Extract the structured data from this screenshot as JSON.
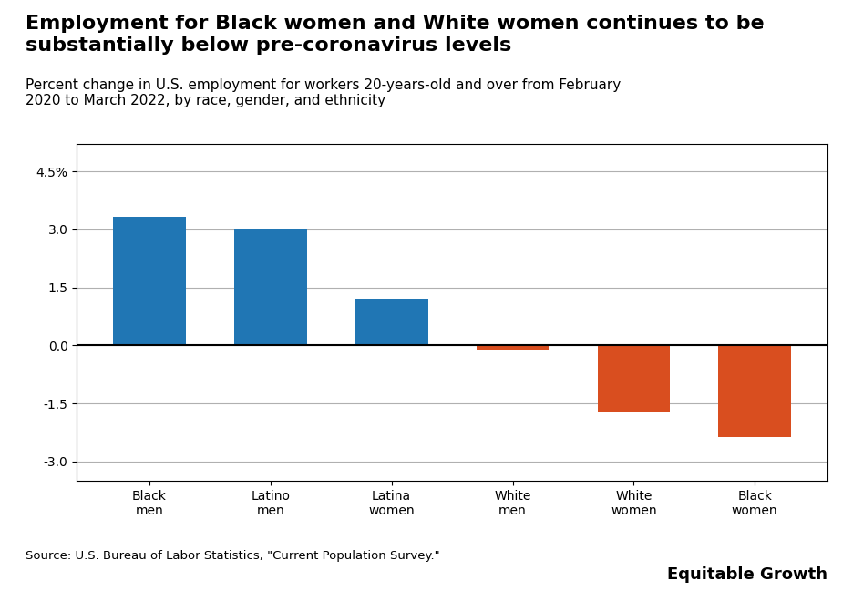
{
  "chart_data": {
    "type": "bar",
    "title": "Employment for Black women and White women continues to be\nsubstantially below pre-coronavirus levels",
    "subtitle": "Percent change in U.S. employment for workers 20-years-old and over from February\n2020 to March 2022, by race, gender, and ethnicity",
    "categories": [
      "Black\nmen",
      "Latino\nmen",
      "Latina\nwomen",
      "White\nmen",
      "White\nwomen",
      "Black\nwomen"
    ],
    "values": [
      3.32,
      3.02,
      1.2,
      -0.12,
      -1.72,
      -2.38
    ],
    "colors": [
      "#2076b4",
      "#2076b4",
      "#2076b4",
      "#d94e1f",
      "#d94e1f",
      "#d94e1f"
    ],
    "ylim": [
      -3.5,
      5.2
    ],
    "yticks": [
      -3.0,
      -1.5,
      0.0,
      1.5,
      3.0,
      {
        "value": 4.5,
        "label": "4.5%"
      }
    ],
    "grid": true,
    "annotations": [
      "Source: U.S. Bureau of Labor Statistics, \"Current Population Survey.\"",
      "Equitable Growth"
    ]
  }
}
